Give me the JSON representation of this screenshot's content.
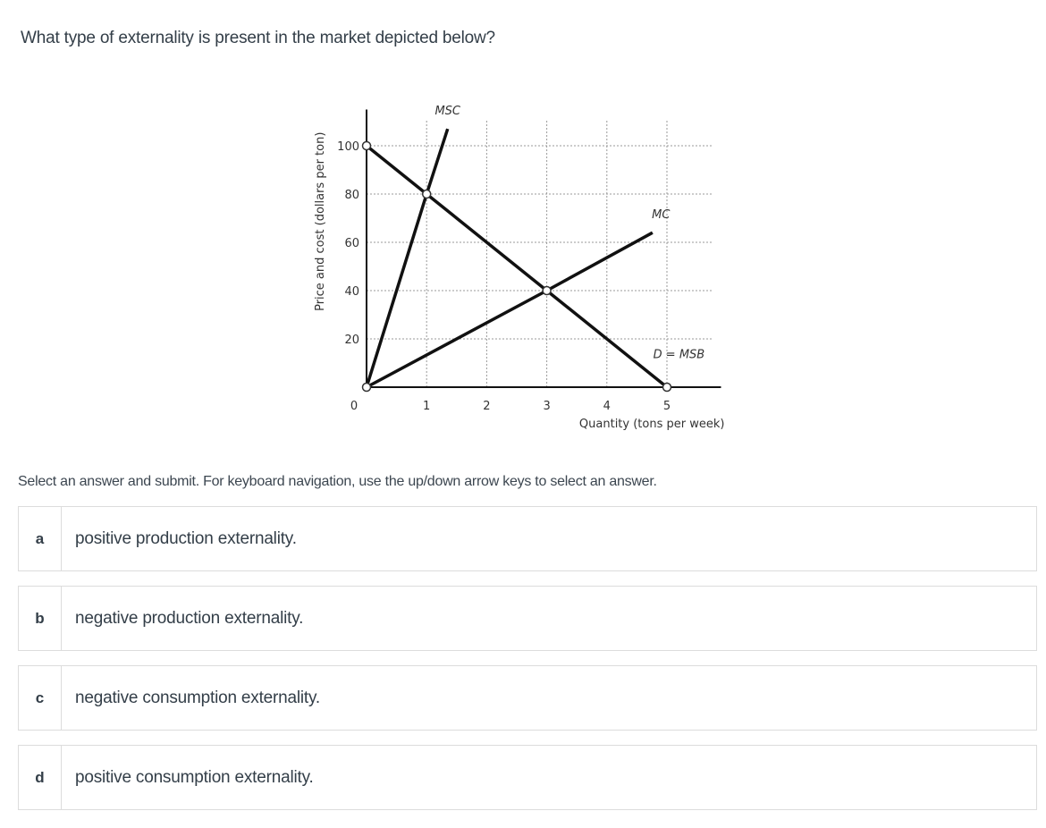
{
  "question": {
    "text": "What type of externality is present in the market depicted below?"
  },
  "instructions": "Select an answer and submit. For keyboard navigation, use the up/down arrow keys to select an answer.",
  "options": [
    {
      "letter": "a",
      "text": "positive production externality."
    },
    {
      "letter": "b",
      "text": "negative production externality."
    },
    {
      "letter": "c",
      "text": "negative consumption externality."
    },
    {
      "letter": "d",
      "text": "positive consumption externality."
    }
  ],
  "chart_data": {
    "type": "line",
    "title": "",
    "xlabel": "Quantity (tons per week)",
    "ylabel": "Price and cost (dollars per ton)",
    "x_ticks": [
      0,
      1,
      2,
      3,
      4,
      5
    ],
    "y_ticks": [
      20,
      40,
      60,
      80,
      100
    ],
    "xlim": [
      0,
      5.9
    ],
    "ylim": [
      0,
      115
    ],
    "grid": true,
    "grid_style": "dotted",
    "series": [
      {
        "name": "MSC",
        "label": "MSC",
        "points": [
          [
            0,
            0
          ],
          [
            1,
            80
          ],
          [
            1.35,
            107
          ]
        ]
      },
      {
        "name": "MC",
        "label": "MC",
        "points": [
          [
            0,
            0
          ],
          [
            3,
            40
          ],
          [
            4.76,
            64
          ]
        ]
      },
      {
        "name": "D = MSB",
        "label": "D = MSB",
        "points": [
          [
            0,
            100
          ],
          [
            1,
            80
          ],
          [
            3,
            40
          ],
          [
            5,
            0
          ]
        ]
      }
    ],
    "marked_points": [
      [
        0,
        0
      ],
      [
        0,
        100
      ],
      [
        1,
        80
      ],
      [
        3,
        40
      ],
      [
        5,
        0
      ]
    ],
    "annotations": [
      {
        "text": "MSC",
        "x": 1.35,
        "y": 113
      },
      {
        "text": "MC",
        "x": 4.9,
        "y": 70
      },
      {
        "text": "D = MSB",
        "x": 5.2,
        "y": 12
      }
    ]
  }
}
